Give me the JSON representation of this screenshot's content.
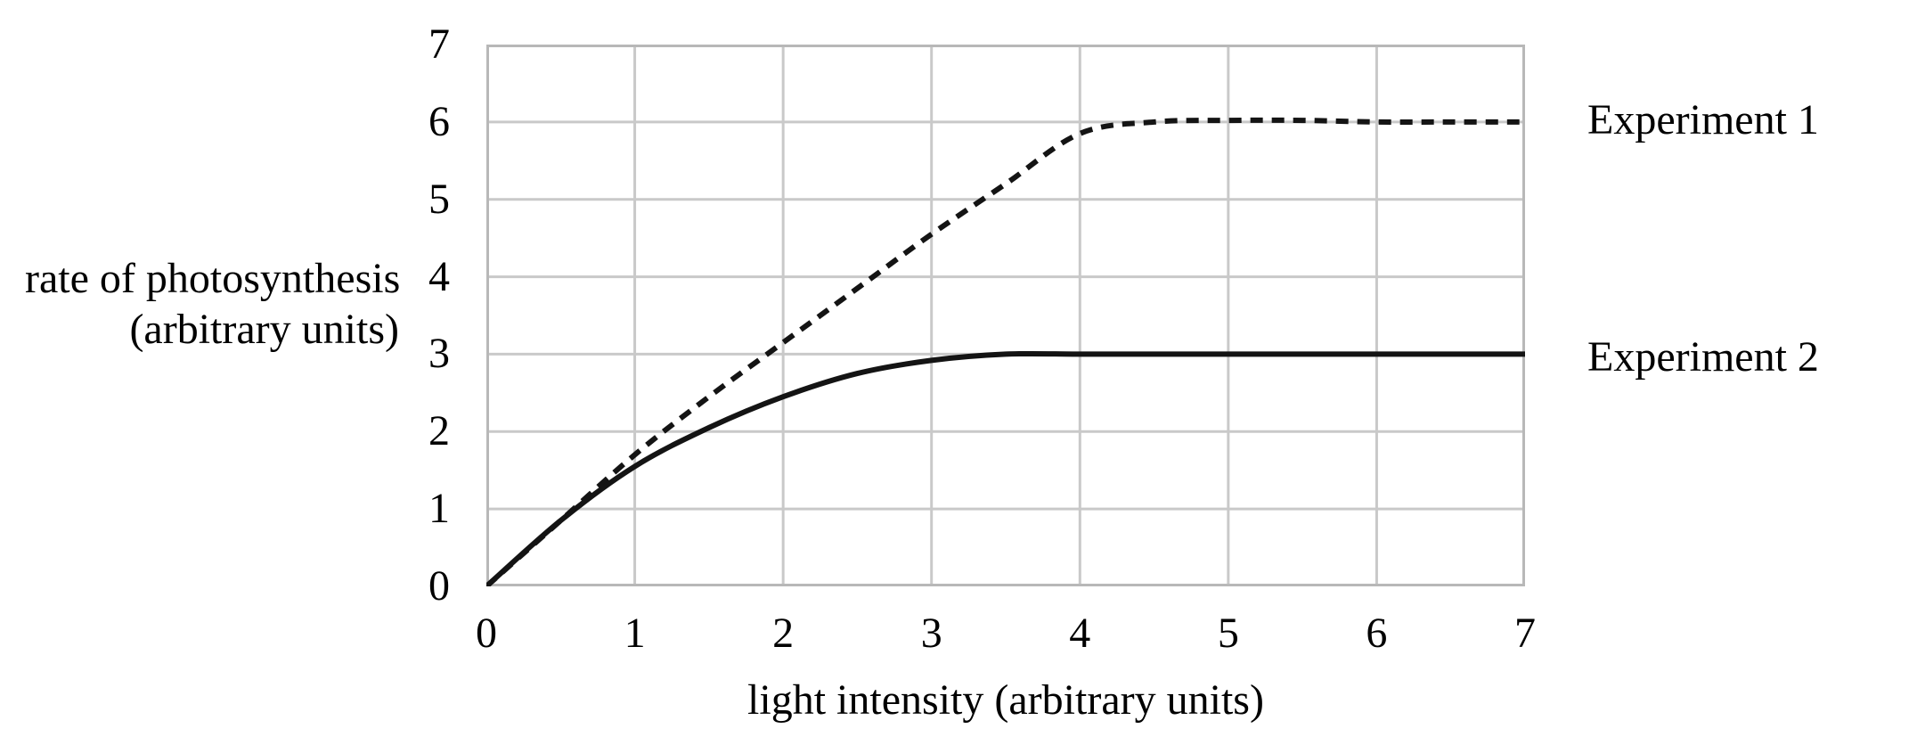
{
  "chart_data": {
    "type": "line",
    "title": "",
    "xlabel": "light intensity (arbitrary units)",
    "ylabel_line1": "rate of photosynthesis",
    "ylabel_line2": "(arbitrary units)",
    "xlim": [
      0,
      7
    ],
    "ylim": [
      0,
      7
    ],
    "x_ticks": [
      0,
      1,
      2,
      3,
      4,
      5,
      6,
      7
    ],
    "y_ticks": [
      0,
      1,
      2,
      3,
      4,
      5,
      6,
      7
    ],
    "grid": true,
    "legend_position": "right of plot, each label aligned with its curve plateau",
    "series": [
      {
        "name": "Experiment 1",
        "style": "dashed",
        "plateau": 6,
        "x": [
          0,
          0.5,
          1,
          1.5,
          2,
          2.5,
          3,
          3.5,
          4,
          4.5,
          5,
          5.5,
          6,
          6.5,
          7
        ],
        "y": [
          0,
          0.85,
          1.7,
          2.45,
          3.15,
          3.85,
          4.55,
          5.2,
          5.85,
          6.0,
          6.02,
          6.02,
          6.0,
          6.0,
          6.0
        ]
      },
      {
        "name": "Experiment 2",
        "style": "solid",
        "plateau": 3,
        "x": [
          0,
          0.5,
          1,
          1.5,
          2,
          2.5,
          3,
          3.5,
          4,
          4.5,
          5,
          5.5,
          6,
          6.5,
          7
        ],
        "y": [
          0,
          0.85,
          1.55,
          2.05,
          2.45,
          2.75,
          2.92,
          3.0,
          3.0,
          3.0,
          3.0,
          3.0,
          3.0,
          3.0,
          3.0
        ]
      }
    ]
  },
  "colors": {
    "background": "#ffffff",
    "grid": "#c9c9c9",
    "plot_border": "#b8b8b8",
    "curve": "#141414",
    "text": "#000000"
  }
}
